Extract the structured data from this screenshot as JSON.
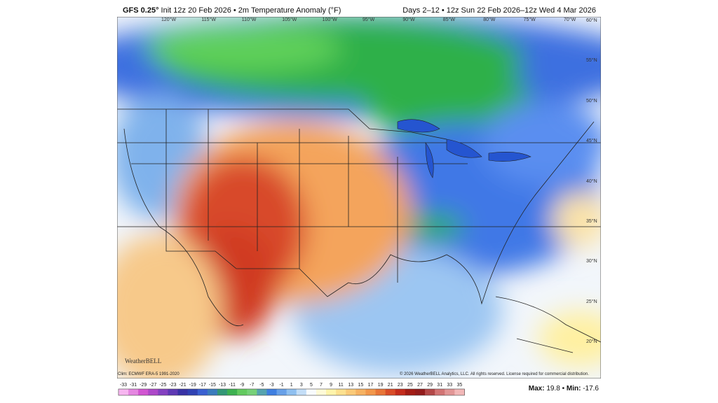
{
  "header": {
    "model": "GFS 0.25°",
    "init": "Init 12z 20 Feb 2026 • 2m Temperature Anomaly (°F)",
    "valid": "Days 2–12 • 12z Sun 22 Feb 2026–12z Wed 4 Mar 2026"
  },
  "map": {
    "lon_labels": [
      "120°W",
      "115°W",
      "110°W",
      "105°W",
      "100°W",
      "95°W",
      "90°W",
      "85°W",
      "80°W",
      "75°W",
      "70°W"
    ],
    "lat_labels": [
      "60°N",
      "55°N",
      "50°N",
      "45°N",
      "40°N",
      "35°N",
      "30°N",
      "25°N",
      "20°N"
    ],
    "climo": "Clim: ECMWF ERA-5 1991-2020",
    "copyright": "© 2026 WeatherBELL Analytics, LLC. All rights reserved. License required for commercial distribution.",
    "logo": "WeatherBELL"
  },
  "colorbar": {
    "labels": [
      -33,
      -31,
      -29,
      -27,
      -25,
      -23,
      -21,
      -19,
      -17,
      -15,
      -13,
      -11,
      -9,
      -7,
      -5,
      -3,
      -1,
      1,
      3,
      5,
      7,
      9,
      11,
      13,
      15,
      17,
      19,
      21,
      23,
      25,
      27,
      29,
      31,
      33,
      35
    ]
  },
  "stats": {
    "max_label": "Max:",
    "max": 19.8,
    "sep": "•",
    "min_label": "Min:",
    "min": -17.6
  }
}
